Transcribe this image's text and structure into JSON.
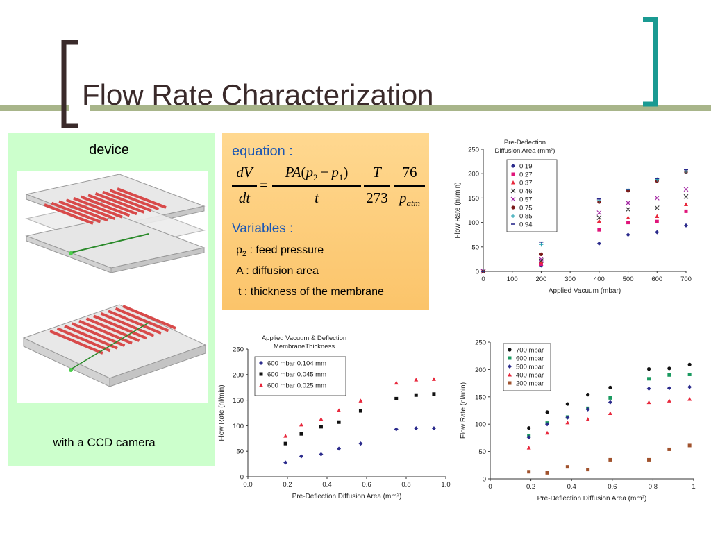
{
  "slide": {
    "title": "Flow Rate Characterization",
    "accent_color": "#1a9a92",
    "line_color": "#a8b58a"
  },
  "device": {
    "label": "device",
    "caption": "with a CCD camera"
  },
  "equation": {
    "heading": "equation :",
    "lhs_num": "dV",
    "lhs_den": "dt",
    "eq_sign": "=",
    "f1_num_a": "PA",
    "f1_num_b": "(",
    "f1_p2": "p",
    "f1_p2_sub": "2",
    "f1_minus": "−",
    "f1_p1": "p",
    "f1_p1_sub": "1",
    "f1_num_c": ")",
    "f1_den": "t",
    "f2_num": "T",
    "f2_den": "273",
    "f3_num": "76",
    "f3_den": "p",
    "f3_den_sub": "atm",
    "variables_heading": "Variables :",
    "var1_sym": "p",
    "var1_sub": "2",
    "var1_text": " : feed pressure",
    "var2": "A : diffusion area",
    "var3": "t : thickness of the membrane"
  },
  "chart_data": [
    {
      "type": "scatter",
      "title_lines": [
        "Pre-Deflection",
        "Diffusion Area (mm²)"
      ],
      "xlabel": "Applied Vacuum (mbar)",
      "ylabel": "Flow Rate (nl/min)",
      "xlim": [
        0,
        700
      ],
      "ylim": [
        0,
        250
      ],
      "xticks": [
        "0",
        "100",
        "200",
        "300",
        "400",
        "500",
        "600",
        "700"
      ],
      "yticks": [
        "0",
        "50",
        "100",
        "150",
        "200",
        "250"
      ],
      "legend_position": "top-left",
      "series": [
        {
          "name": "0.19",
          "marker": "diamond",
          "color": "#2b2b8c",
          "x": [
            0,
            200,
            400,
            500,
            600,
            700
          ],
          "y": [
            0,
            12,
            57,
            75,
            80,
            94
          ]
        },
        {
          "name": "0.27",
          "marker": "square",
          "color": "#e0157a",
          "x": [
            0,
            200,
            400,
            500,
            600,
            700
          ],
          "y": [
            0,
            15,
            85,
            100,
            102,
            123
          ]
        },
        {
          "name": "0.37",
          "marker": "triangle",
          "color": "#e8283c",
          "x": [
            0,
            200,
            400,
            500,
            600,
            700
          ],
          "y": [
            0,
            18,
            103,
            110,
            113,
            137
          ]
        },
        {
          "name": "0.46",
          "marker": "x",
          "color": "#333333",
          "x": [
            0,
            200,
            400,
            500,
            600,
            700
          ],
          "y": [
            0,
            22,
            110,
            127,
            130,
            153
          ]
        },
        {
          "name": "0.57",
          "marker": "x",
          "color": "#a020a0",
          "x": [
            0,
            200,
            400,
            500,
            600,
            700
          ],
          "y": [
            0,
            25,
            120,
            140,
            150,
            168
          ]
        },
        {
          "name": "0.75",
          "marker": "circle",
          "color": "#7a1a1a",
          "x": [
            0,
            200,
            400,
            500,
            600,
            700
          ],
          "y": [
            0,
            35,
            142,
            165,
            185,
            203
          ]
        },
        {
          "name": "0.85",
          "marker": "plus",
          "color": "#20a0b0",
          "x": [
            0,
            200,
            400,
            500,
            600,
            700
          ],
          "y": [
            0,
            55,
            145,
            167,
            188,
            205
          ]
        },
        {
          "name": "0.94",
          "marker": "dash",
          "color": "#2b2b8c",
          "x": [
            0,
            200,
            400,
            500,
            600,
            700
          ],
          "y": [
            0,
            60,
            148,
            168,
            190,
            208
          ]
        }
      ]
    },
    {
      "type": "scatter",
      "title_lines": [
        "Applied Vacuum & Deflection",
        "MembraneThickness"
      ],
      "xlabel": "Pre-Deflection Diffusion Area (mm²)",
      "ylabel": "Flow Rate (nl/min)",
      "xlim": [
        0,
        1.0
      ],
      "ylim": [
        0,
        250
      ],
      "xticks": [
        "0.0",
        "0.2",
        "0.4",
        "0.6",
        "0.8",
        "1.0"
      ],
      "yticks": [
        "0",
        "50",
        "100",
        "150",
        "200",
        "250"
      ],
      "legend_position": "top-left",
      "series": [
        {
          "name": "600 mbar 0.104 mm",
          "marker": "diamond",
          "color": "#2b2b8c",
          "x": [
            0.19,
            0.27,
            0.37,
            0.46,
            0.57,
            0.75,
            0.85,
            0.94
          ],
          "y": [
            28,
            40,
            44,
            55,
            65,
            93,
            95,
            95
          ]
        },
        {
          "name": "600 mbar 0.045 mm",
          "marker": "square",
          "color": "#111111",
          "x": [
            0.19,
            0.27,
            0.37,
            0.46,
            0.57,
            0.75,
            0.85,
            0.94
          ],
          "y": [
            65,
            84,
            98,
            107,
            129,
            153,
            160,
            162
          ]
        },
        {
          "name": "600 mbar 0.025 mm",
          "marker": "triangle",
          "color": "#e8283c",
          "x": [
            0.19,
            0.27,
            0.37,
            0.46,
            0.57,
            0.75,
            0.85,
            0.94
          ],
          "y": [
            80,
            102,
            113,
            130,
            149,
            184,
            190,
            191
          ]
        }
      ]
    },
    {
      "type": "scatter",
      "title_lines": [],
      "xlabel": "Pre-Deflection Diffusion Area (mm²)",
      "ylabel": "Flow Rate (nl/min)",
      "xlim": [
        0,
        1
      ],
      "ylim": [
        0,
        250
      ],
      "xticks": [
        "0",
        "0.2",
        "0.4",
        "0.6",
        "0.8",
        "1"
      ],
      "yticks": [
        "0",
        "50",
        "100",
        "150",
        "200",
        "250"
      ],
      "legend_position": "top-left",
      "series": [
        {
          "name": "700 mbar",
          "marker": "circle",
          "color": "#111111",
          "x": [
            0.19,
            0.28,
            0.38,
            0.48,
            0.59,
            0.78,
            0.88,
            0.98
          ],
          "y": [
            93,
            122,
            137,
            154,
            167,
            201,
            202,
            209
          ]
        },
        {
          "name": "600 mbar",
          "marker": "square",
          "color": "#1a9a60",
          "x": [
            0.19,
            0.28,
            0.38,
            0.48,
            0.59,
            0.78,
            0.88,
            0.98
          ],
          "y": [
            79,
            102,
            113,
            129,
            148,
            183,
            190,
            191
          ]
        },
        {
          "name": "500 mbar",
          "marker": "diamond",
          "color": "#2b2b8c",
          "x": [
            0.19,
            0.28,
            0.38,
            0.48,
            0.59,
            0.78,
            0.88,
            0.98
          ],
          "y": [
            76,
            100,
            112,
            127,
            140,
            165,
            166,
            168
          ]
        },
        {
          "name": "400 mbar",
          "marker": "triangle",
          "color": "#e8283c",
          "x": [
            0.19,
            0.28,
            0.38,
            0.48,
            0.59,
            0.78,
            0.88,
            0.98
          ],
          "y": [
            57,
            84,
            103,
            109,
            120,
            140,
            143,
            146
          ]
        },
        {
          "name": "200 mbar",
          "marker": "square",
          "color": "#a0522d",
          "x": [
            0.19,
            0.28,
            0.38,
            0.48,
            0.59,
            0.78,
            0.88,
            0.98
          ],
          "y": [
            13,
            11,
            22,
            17,
            35,
            35,
            54,
            61
          ]
        }
      ]
    }
  ]
}
